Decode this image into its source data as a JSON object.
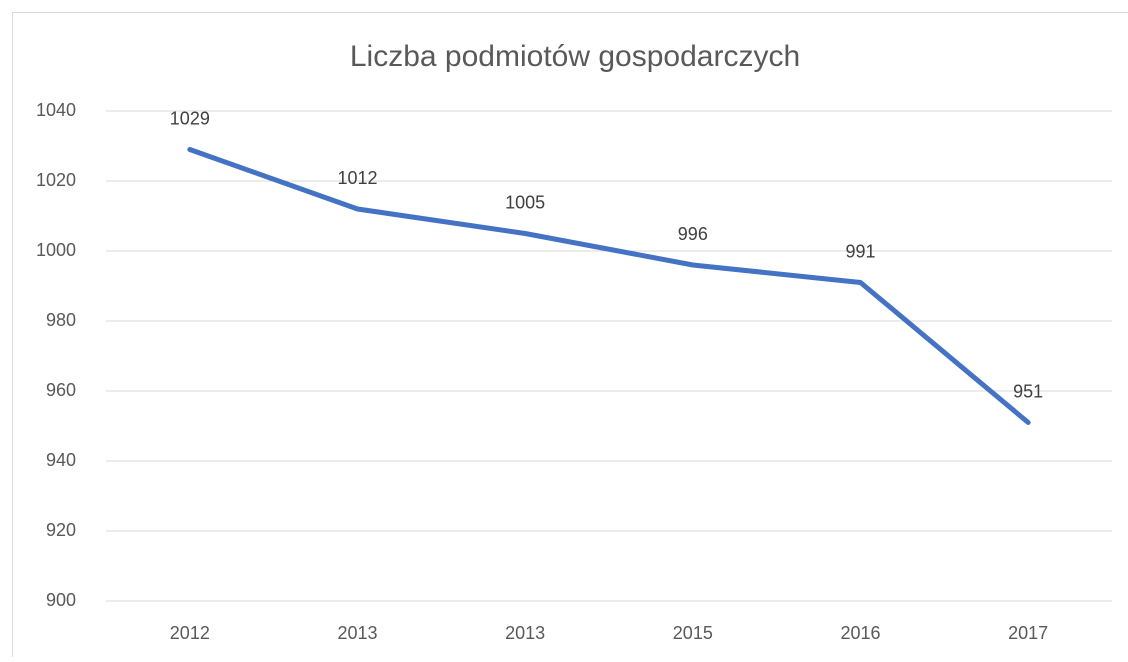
{
  "chart_data": {
    "type": "line",
    "title": "Liczba podmiotów gospodarczych",
    "categories": [
      "2012",
      "2013",
      "2013",
      "2015",
      "2016",
      "2017"
    ],
    "values": [
      1029,
      1012,
      1005,
      996,
      991,
      951
    ],
    "color": "#4472c4",
    "ylim": [
      900,
      1040
    ],
    "yticks": [
      900,
      920,
      940,
      960,
      980,
      1000,
      1020,
      1040
    ],
    "grid": true
  }
}
